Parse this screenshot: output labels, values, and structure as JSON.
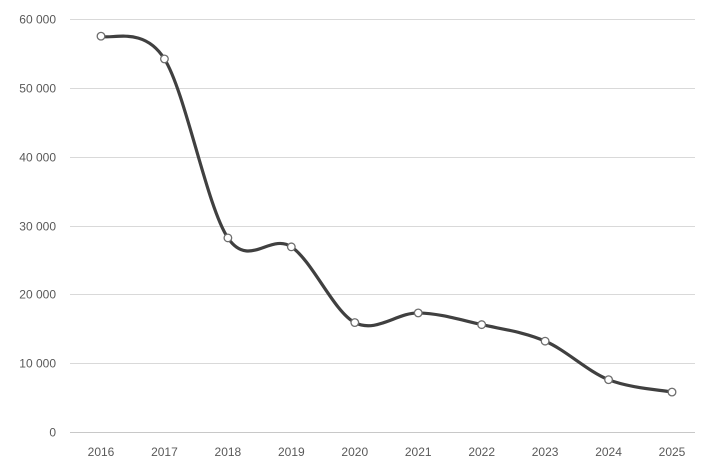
{
  "chart_data": {
    "type": "line",
    "title": "",
    "xlabel": "",
    "ylabel": "",
    "categories": [
      "2016",
      "2017",
      "2018",
      "2019",
      "2020",
      "2021",
      "2022",
      "2023",
      "2024",
      "2025"
    ],
    "series": [
      {
        "values": [
          57500,
          54200,
          28200,
          26900,
          15900,
          17300,
          15600,
          13200,
          7600,
          5800
        ],
        "color": "#404040"
      }
    ],
    "ylim": [
      0,
      60000
    ],
    "yticks": [
      0,
      10000,
      20000,
      30000,
      40000,
      50000,
      60000
    ],
    "ytick_labels": [
      "0",
      "10 000",
      "20 000",
      "30 000",
      "40 000",
      "50 000",
      "60 000"
    ],
    "line_style": "smooth",
    "markers": "hollow-circle",
    "grid": "horizontal",
    "legend": "none"
  }
}
